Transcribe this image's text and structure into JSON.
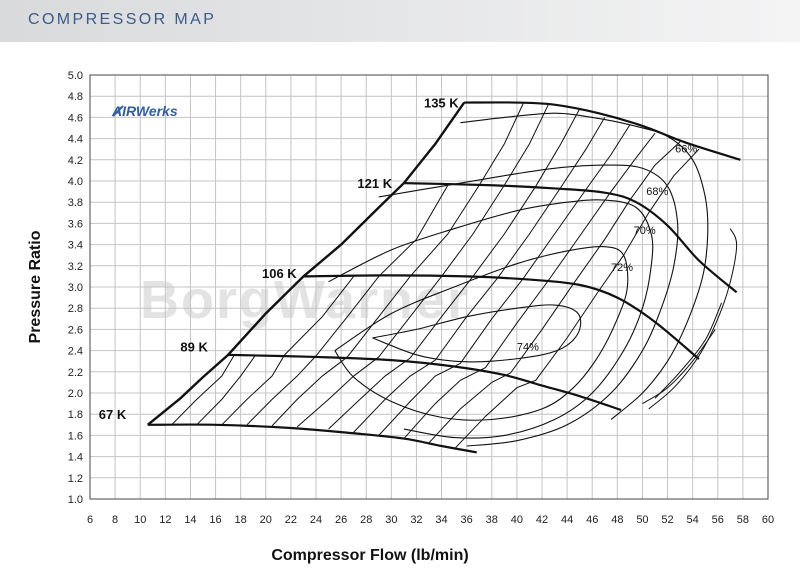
{
  "header": {
    "title": "COMPRESSOR MAP"
  },
  "logo": {
    "brand": "AIRWerks",
    "watermark": "BorgWarner"
  },
  "chart_data": {
    "type": "line",
    "title": "",
    "xlabel": "Compressor Flow (lb/min)",
    "ylabel": "Pressure Ratio",
    "xlim": [
      6,
      60
    ],
    "ylim": [
      1.0,
      5.0
    ],
    "x_ticks": [
      6,
      8,
      10,
      12,
      14,
      16,
      18,
      20,
      22,
      24,
      26,
      28,
      30,
      32,
      34,
      36,
      38,
      40,
      42,
      44,
      46,
      48,
      50,
      52,
      54,
      56,
      58,
      60
    ],
    "y_ticks": [
      1.0,
      1.2,
      1.4,
      1.6,
      1.8,
      2.0,
      2.2,
      2.4,
      2.6,
      2.8,
      3.0,
      3.2,
      3.4,
      3.6,
      3.8,
      4.0,
      4.2,
      4.4,
      4.6,
      4.8,
      5.0
    ],
    "grid": true,
    "surge_line": [
      [
        10.6,
        1.7
      ],
      [
        13.2,
        1.95
      ],
      [
        15.0,
        2.15
      ],
      [
        17.0,
        2.36
      ],
      [
        20.0,
        2.75
      ],
      [
        23.0,
        3.1
      ],
      [
        26.0,
        3.4
      ],
      [
        29.0,
        3.75
      ],
      [
        31.0,
        3.98
      ],
      [
        33.5,
        4.35
      ],
      [
        35.8,
        4.74
      ]
    ],
    "speed_lines": [
      {
        "name": "67 K",
        "label_at": [
          6.7,
          1.8
        ],
        "points": [
          [
            10.6,
            1.7
          ],
          [
            16.0,
            1.7
          ],
          [
            22.0,
            1.67
          ],
          [
            27.0,
            1.62
          ],
          [
            31.0,
            1.57
          ],
          [
            34.0,
            1.5
          ],
          [
            36.8,
            1.44
          ]
        ]
      },
      {
        "name": "89 K",
        "label_at": [
          13.2,
          2.44
        ],
        "points": [
          [
            17.0,
            2.36
          ],
          [
            24.0,
            2.34
          ],
          [
            30.0,
            2.31
          ],
          [
            35.0,
            2.25
          ],
          [
            39.0,
            2.17
          ],
          [
            42.0,
            2.07
          ],
          [
            45.0,
            1.97
          ],
          [
            48.3,
            1.84
          ]
        ]
      },
      {
        "name": "106 K",
        "label_at": [
          19.7,
          3.13
        ],
        "points": [
          [
            23.0,
            3.1
          ],
          [
            30.0,
            3.11
          ],
          [
            36.0,
            3.1
          ],
          [
            41.0,
            3.07
          ],
          [
            45.0,
            3.02
          ],
          [
            48.0,
            2.9
          ],
          [
            51.0,
            2.67
          ],
          [
            54.5,
            2.32
          ]
        ]
      },
      {
        "name": "121 K",
        "label_at": [
          27.3,
          3.98
        ],
        "points": [
          [
            31.0,
            3.98
          ],
          [
            38.0,
            3.96
          ],
          [
            43.0,
            3.93
          ],
          [
            47.0,
            3.89
          ],
          [
            49.5,
            3.8
          ],
          [
            52.0,
            3.58
          ],
          [
            54.5,
            3.25
          ],
          [
            57.5,
            2.95
          ]
        ]
      },
      {
        "name": "135 K",
        "label_at": [
          32.6,
          4.74
        ],
        "points": [
          [
            35.8,
            4.74
          ],
          [
            40.0,
            4.74
          ],
          [
            43.0,
            4.72
          ],
          [
            46.5,
            4.64
          ],
          [
            50.0,
            4.52
          ],
          [
            53.5,
            4.36
          ],
          [
            57.8,
            4.2
          ]
        ]
      }
    ],
    "efficiency_islands": [
      {
        "name": "74%",
        "label_at": [
          40.0,
          2.4
        ],
        "points": [
          [
            28.5,
            2.52
          ],
          [
            32.0,
            2.6
          ],
          [
            36.0,
            2.72
          ],
          [
            40.0,
            2.8
          ],
          [
            43.0,
            2.83
          ],
          [
            44.8,
            2.76
          ],
          [
            45.0,
            2.6
          ],
          [
            44.0,
            2.45
          ],
          [
            42.0,
            2.36
          ],
          [
            38.0,
            2.3
          ],
          [
            35.0,
            2.3
          ],
          [
            32.0,
            2.36
          ],
          [
            28.5,
            2.52
          ]
        ]
      },
      {
        "name": "72%",
        "label_at": [
          47.5,
          3.15
        ],
        "points": [
          [
            25.5,
            2.4
          ],
          [
            30.0,
            2.75
          ],
          [
            35.0,
            3.0
          ],
          [
            40.0,
            3.22
          ],
          [
            44.0,
            3.34
          ],
          [
            47.0,
            3.38
          ],
          [
            48.5,
            3.3
          ],
          [
            48.8,
            3.0
          ],
          [
            48.0,
            2.7
          ],
          [
            46.5,
            2.35
          ],
          [
            44.5,
            2.05
          ],
          [
            42.0,
            1.85
          ],
          [
            38.0,
            1.75
          ],
          [
            34.0,
            1.77
          ],
          [
            30.0,
            1.92
          ],
          [
            27.0,
            2.15
          ],
          [
            25.5,
            2.4
          ]
        ]
      },
      {
        "name": "70%",
        "label_at": [
          49.3,
          3.5
        ],
        "points": [
          [
            25.0,
            3.05
          ],
          [
            30.0,
            3.35
          ],
          [
            35.0,
            3.55
          ],
          [
            40.0,
            3.72
          ],
          [
            44.0,
            3.8
          ],
          [
            47.0,
            3.82
          ],
          [
            49.5,
            3.75
          ],
          [
            50.7,
            3.5
          ],
          [
            50.7,
            3.2
          ],
          [
            50.0,
            2.8
          ],
          [
            48.5,
            2.4
          ],
          [
            46.0,
            2.0
          ],
          [
            43.0,
            1.75
          ],
          [
            39.0,
            1.6
          ],
          [
            35.0,
            1.58
          ],
          [
            31.0,
            1.66
          ]
        ]
      },
      {
        "name": "68%",
        "label_at": [
          50.3,
          3.87
        ],
        "points": [
          [
            29.0,
            3.85
          ],
          [
            34.0,
            3.95
          ],
          [
            39.0,
            4.05
          ],
          [
            43.0,
            4.12
          ],
          [
            47.0,
            4.15
          ],
          [
            50.0,
            4.12
          ],
          [
            52.0,
            3.95
          ],
          [
            52.8,
            3.6
          ],
          [
            52.5,
            3.2
          ],
          [
            51.5,
            2.8
          ],
          [
            50.0,
            2.4
          ],
          [
            47.5,
            2.0
          ],
          [
            44.0,
            1.7
          ],
          [
            40.0,
            1.55
          ],
          [
            36.0,
            1.5
          ]
        ]
      },
      {
        "name": "66%",
        "label_at": [
          52.6,
          4.27
        ],
        "points": [
          [
            35.5,
            4.55
          ],
          [
            39.0,
            4.6
          ],
          [
            43.0,
            4.64
          ],
          [
            46.0,
            4.6
          ],
          [
            49.0,
            4.53
          ],
          [
            52.0,
            4.42
          ],
          [
            54.0,
            4.2
          ],
          [
            55.0,
            3.85
          ],
          [
            55.2,
            3.5
          ],
          [
            54.8,
            3.1
          ],
          [
            53.5,
            2.65
          ],
          [
            52.0,
            2.3
          ],
          [
            50.0,
            2.0
          ],
          [
            47.5,
            1.75
          ]
        ]
      }
    ],
    "extra_low_eff_curves": [
      [
        [
          57.0,
          3.55
        ],
        [
          57.5,
          3.4
        ],
        [
          57.0,
          3.05
        ],
        [
          56.0,
          2.7
        ],
        [
          54.5,
          2.35
        ],
        [
          52.5,
          2.05
        ],
        [
          50.5,
          1.85
        ]
      ],
      [
        [
          56.3,
          2.85
        ],
        [
          55.0,
          2.5
        ],
        [
          53.0,
          2.2
        ],
        [
          51.0,
          1.95
        ]
      ],
      [
        [
          55.8,
          2.6
        ],
        [
          54.0,
          2.3
        ],
        [
          52.0,
          2.05
        ],
        [
          50.0,
          1.9
        ]
      ]
    ],
    "choke_curves": [
      [
        [
          12.5,
          1.7
        ],
        [
          14.5,
          1.94
        ],
        [
          16.5,
          2.16
        ],
        [
          17.5,
          2.36
        ]
      ],
      [
        [
          14.5,
          1.7
        ],
        [
          16.5,
          1.94
        ],
        [
          18.0,
          2.16
        ],
        [
          19.2,
          2.36
        ]
      ],
      [
        [
          16.5,
          1.7
        ],
        [
          18.5,
          1.94
        ],
        [
          20.5,
          2.16
        ],
        [
          21.5,
          2.36
        ],
        [
          24.5,
          2.72
        ],
        [
          27.0,
          3.1
        ]
      ],
      [
        [
          18.5,
          1.7
        ],
        [
          20.5,
          1.94
        ],
        [
          22.5,
          2.16
        ],
        [
          24.0,
          2.35
        ],
        [
          26.5,
          2.72
        ],
        [
          29.0,
          3.1
        ],
        [
          32.0,
          3.45
        ],
        [
          34.5,
          3.96
        ]
      ],
      [
        [
          20.5,
          1.69
        ],
        [
          22.5,
          1.94
        ],
        [
          24.5,
          2.16
        ],
        [
          26.5,
          2.34
        ],
        [
          29.0,
          2.72
        ],
        [
          31.5,
          3.1
        ],
        [
          34.5,
          3.5
        ],
        [
          37.0,
          3.96
        ],
        [
          39.0,
          4.35
        ],
        [
          40.5,
          4.73
        ]
      ],
      [
        [
          22.5,
          1.68
        ],
        [
          25.0,
          1.94
        ],
        [
          27.0,
          2.16
        ],
        [
          29.0,
          2.34
        ],
        [
          31.5,
          2.72
        ],
        [
          34.0,
          3.1
        ],
        [
          36.5,
          3.5
        ],
        [
          39.0,
          3.96
        ],
        [
          41.0,
          4.35
        ],
        [
          42.5,
          4.72
        ]
      ],
      [
        [
          25.0,
          1.66
        ],
        [
          27.5,
          1.94
        ],
        [
          29.5,
          2.16
        ],
        [
          31.5,
          2.33
        ],
        [
          34.0,
          2.72
        ],
        [
          36.5,
          3.1
        ],
        [
          39.0,
          3.5
        ],
        [
          41.5,
          3.95
        ],
        [
          43.5,
          4.35
        ],
        [
          45.0,
          4.68
        ]
      ],
      [
        [
          27.0,
          1.63
        ],
        [
          29.5,
          1.94
        ],
        [
          31.5,
          2.16
        ],
        [
          33.5,
          2.31
        ],
        [
          36.0,
          2.72
        ],
        [
          38.5,
          3.09
        ],
        [
          41.0,
          3.5
        ],
        [
          43.5,
          3.94
        ],
        [
          45.5,
          4.3
        ],
        [
          47.0,
          4.6
        ]
      ],
      [
        [
          29.0,
          1.6
        ],
        [
          31.5,
          1.92
        ],
        [
          33.5,
          2.16
        ],
        [
          35.5,
          2.28
        ],
        [
          38.0,
          2.7
        ],
        [
          40.5,
          3.08
        ],
        [
          43.0,
          3.5
        ],
        [
          45.5,
          3.92
        ],
        [
          47.5,
          4.25
        ],
        [
          49.0,
          4.53
        ]
      ],
      [
        [
          31.0,
          1.57
        ],
        [
          33.5,
          1.9
        ],
        [
          35.5,
          2.12
        ],
        [
          37.5,
          2.24
        ],
        [
          40.0,
          2.66
        ],
        [
          42.5,
          3.06
        ],
        [
          45.0,
          3.48
        ],
        [
          47.5,
          3.9
        ],
        [
          49.5,
          4.22
        ],
        [
          51.0,
          4.45
        ]
      ],
      [
        [
          33.0,
          1.53
        ],
        [
          35.5,
          1.85
        ],
        [
          38.0,
          2.1
        ],
        [
          39.5,
          2.19
        ],
        [
          42.0,
          2.6
        ],
        [
          44.5,
          3.03
        ],
        [
          47.0,
          3.45
        ],
        [
          49.0,
          3.82
        ],
        [
          51.0,
          4.15
        ],
        [
          53.0,
          4.37
        ]
      ],
      [
        [
          35.0,
          1.47
        ],
        [
          37.5,
          1.78
        ],
        [
          40.0,
          2.05
        ],
        [
          41.5,
          2.12
        ],
        [
          44.0,
          2.52
        ],
        [
          46.5,
          2.96
        ],
        [
          48.5,
          3.3
        ],
        [
          50.5,
          3.7
        ],
        [
          52.5,
          4.05
        ],
        [
          54.5,
          4.3
        ]
      ]
    ]
  }
}
